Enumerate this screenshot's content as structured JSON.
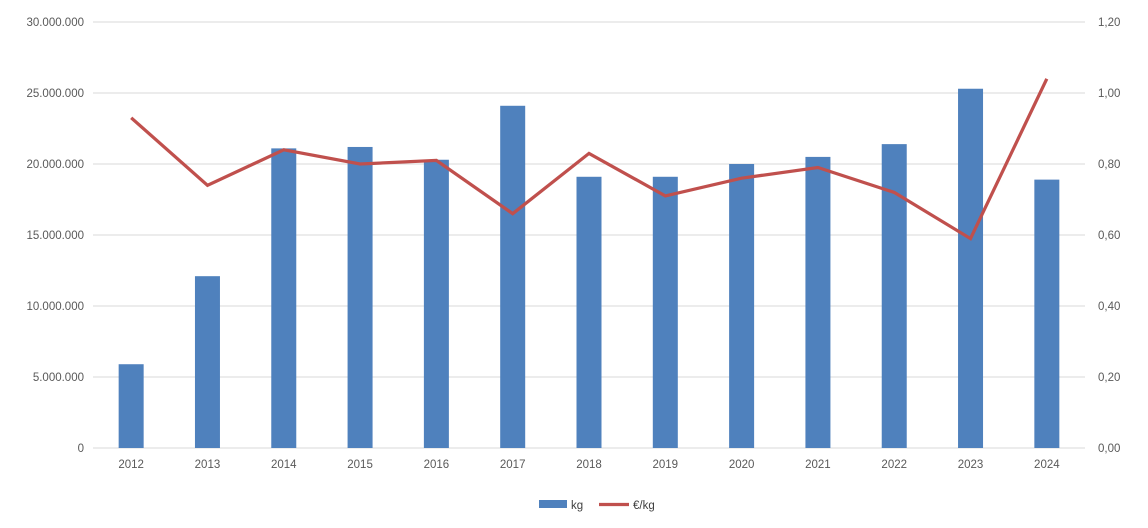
{
  "chart_data": {
    "type": "bar",
    "subtype": "combo-bar-line-dual-axis",
    "title": "",
    "xlabel": "",
    "ylabel_left": "",
    "ylabel_right": "",
    "grid": true,
    "categories": [
      "2012",
      "2013",
      "2014",
      "2015",
      "2016",
      "2017",
      "2018",
      "2019",
      "2020",
      "2021",
      "2022",
      "2023",
      "2024"
    ],
    "series": [
      {
        "name": "kg",
        "type": "bar",
        "axis": "left",
        "color": "#4f81bd",
        "values": [
          5900000,
          12100000,
          21100000,
          21200000,
          20300000,
          24100000,
          19100000,
          19100000,
          20000000,
          20500000,
          21400000,
          25300000,
          18900000
        ]
      },
      {
        "name": "€/kg",
        "type": "line",
        "axis": "right",
        "color": "#c0504d",
        "values": [
          0.93,
          0.74,
          0.84,
          0.8,
          0.81,
          0.66,
          0.83,
          0.71,
          0.76,
          0.79,
          0.72,
          0.59,
          1.04
        ]
      }
    ],
    "left_axis": {
      "min": 0,
      "max": 30000000,
      "step": 5000000,
      "tick_labels_top_to_bottom": [
        "30.000.000",
        "25.000.000",
        "20.000.000",
        "15.000.000",
        "10.000.000",
        "5.000.000",
        "0"
      ]
    },
    "right_axis": {
      "min": 0,
      "max": 1.2,
      "step": 0.2,
      "tick_labels_top_to_bottom": [
        "1,20",
        "1,00",
        "0,80",
        "0,60",
        "0,40",
        "0,20",
        "0,00"
      ]
    },
    "legend": {
      "position": "bottom",
      "items": [
        {
          "label": "kg",
          "swatch": "bar"
        },
        {
          "label": "€/kg",
          "swatch": "line"
        }
      ]
    }
  },
  "colors": {
    "grid": "#d9d9d9",
    "axis_text": "#595959",
    "legend_text": "#404040",
    "background": "#ffffff"
  }
}
